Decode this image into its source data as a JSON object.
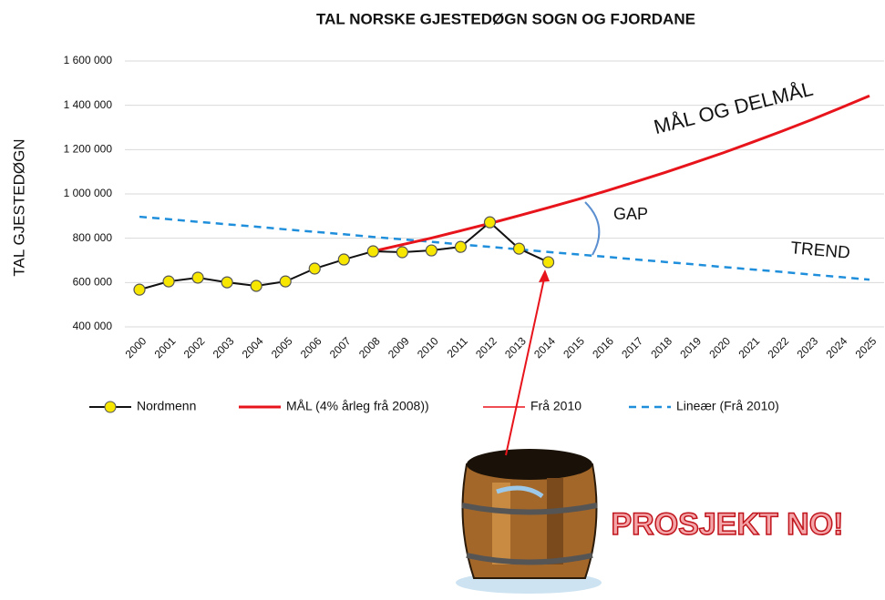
{
  "chart_data": {
    "type": "line",
    "title": "TAL NORSKE GJESTEDØGN SOGN OG FJORDANE",
    "y_label": "TAL GJESTEDØGN",
    "categories": [
      "2000",
      "2001",
      "2002",
      "2003",
      "2004",
      "2005",
      "2006",
      "2007",
      "2008",
      "2009",
      "2010",
      "2011",
      "2012",
      "2013",
      "2014",
      "2015",
      "2016",
      "2017",
      "2018",
      "2019",
      "2020",
      "2021",
      "2022",
      "2023",
      "2024",
      "2025"
    ],
    "series": [
      {
        "name": "Nordmenn",
        "color": "#111111",
        "line_width": 2,
        "marker": "circle",
        "marker_color": "#f7e600",
        "values": [
          568000,
          605000,
          622000,
          601000,
          585000,
          605000,
          663000,
          704000,
          741000,
          737000,
          745000,
          761000,
          872000,
          753000,
          692000,
          null,
          null,
          null,
          null,
          null,
          null,
          null,
          null,
          null,
          null,
          null
        ]
      },
      {
        "name": "MÅL (4% årleg frå 2008))",
        "color": "#e8141c",
        "line_width": 3,
        "values": [
          null,
          null,
          null,
          null,
          null,
          null,
          null,
          null,
          741000,
          771000,
          801000,
          834000,
          867000,
          902000,
          938000,
          975000,
          1014000,
          1055000,
          1097000,
          1141000,
          1186000,
          1234000,
          1283000,
          1334000,
          1388000,
          1443000
        ]
      },
      {
        "name": "Frå 2010",
        "color": "#e8141c",
        "line_width": 1.5,
        "values": [
          null,
          null,
          null,
          null,
          null,
          null,
          null,
          null,
          null,
          null,
          745000,
          761000,
          872000,
          753000,
          692000,
          null,
          null,
          null,
          null,
          null,
          null,
          null,
          null,
          null,
          null,
          null
        ]
      },
      {
        "name": "Lineær (Frå 2010)",
        "color": "#1f8fdc",
        "line_width": 2.5,
        "dashed": true,
        "values": [
          897000,
          886000,
          874000,
          863000,
          852000,
          840000,
          829000,
          818000,
          806000,
          795000,
          784000,
          772000,
          761000,
          750000,
          738000,
          727000,
          716000,
          704000,
          693000,
          682000,
          670000,
          659000,
          648000,
          636000,
          625000,
          613000
        ]
      }
    ],
    "ylim": [
      400000,
      1600000
    ],
    "yticks": [
      {
        "value": 400000,
        "label": "400 000"
      },
      {
        "value": 600000,
        "label": "600 000"
      },
      {
        "value": 800000,
        "label": "800 000"
      },
      {
        "value": 1000000,
        "label": "1 000 000"
      },
      {
        "value": 1200000,
        "label": "1 200 000"
      },
      {
        "value": 1400000,
        "label": "1 400 000"
      },
      {
        "value": 1600000,
        "label": "1 600 000"
      }
    ],
    "grid": true,
    "legend": "bottom",
    "annotations": [
      "MÅL OG DELMÅL",
      "GAP",
      "TREND",
      "PROSJEKT NO!"
    ]
  }
}
